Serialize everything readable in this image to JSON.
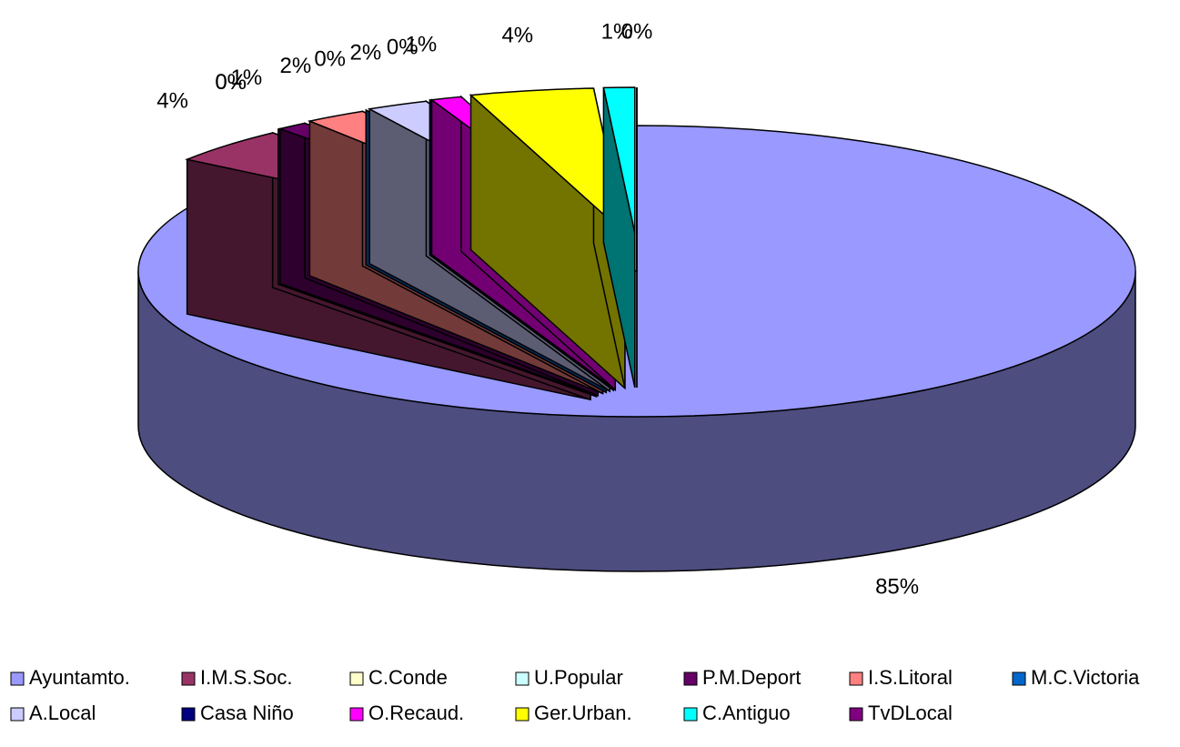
{
  "chart_data": {
    "type": "pie3d",
    "categories": [
      "Ayuntamto.",
      "I.M.S.Soc.",
      "C.Conde",
      "U.Popular",
      "P.M.Deport",
      "I.S.Litoral",
      "M.C.Victoria",
      "A.Local",
      "Casa Niño",
      "O.Recaud.",
      "Ger.Urban.",
      "C.Antiguo",
      "TvDLocal"
    ],
    "values": [
      85,
      4,
      0,
      0,
      1,
      2,
      0,
      2,
      0,
      1,
      4,
      1,
      0
    ],
    "value_labels": [
      "85%",
      "4%",
      "0%",
      "0%",
      "1%",
      "2%",
      "0%",
      "2%",
      "0%",
      "1%",
      "4%",
      "1%",
      "0%"
    ],
    "colors": [
      "#9999ff",
      "#993366",
      "#ffffcc",
      "#ccffff",
      "#660066",
      "#ff8080",
      "#0066cc",
      "#ccccff",
      "#000080",
      "#ff00ff",
      "#ffff00",
      "#00ffff",
      "#800080"
    ],
    "legend": "bottom"
  }
}
